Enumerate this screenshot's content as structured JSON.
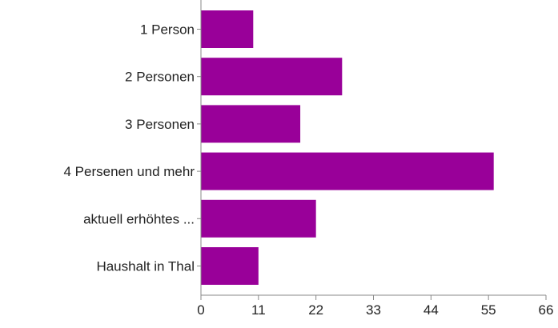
{
  "chart_data": {
    "type": "bar",
    "orientation": "horizontal",
    "categories": [
      "1 Person",
      "2 Personen",
      "3 Personen",
      "4 Persenen und mehr",
      "aktuell erhöhtes ...",
      "Haushalt in Thal"
    ],
    "values": [
      10,
      27,
      19,
      56,
      22,
      11
    ],
    "xticks": [
      "0",
      "11",
      "22",
      "33",
      "44",
      "55",
      "66"
    ],
    "xlim": [
      0,
      66
    ],
    "title": "",
    "xlabel": "",
    "ylabel": "",
    "grid": false,
    "legend": "none",
    "bar_color": "#990099",
    "axis_color": "#888888",
    "text_color": "#222222"
  }
}
